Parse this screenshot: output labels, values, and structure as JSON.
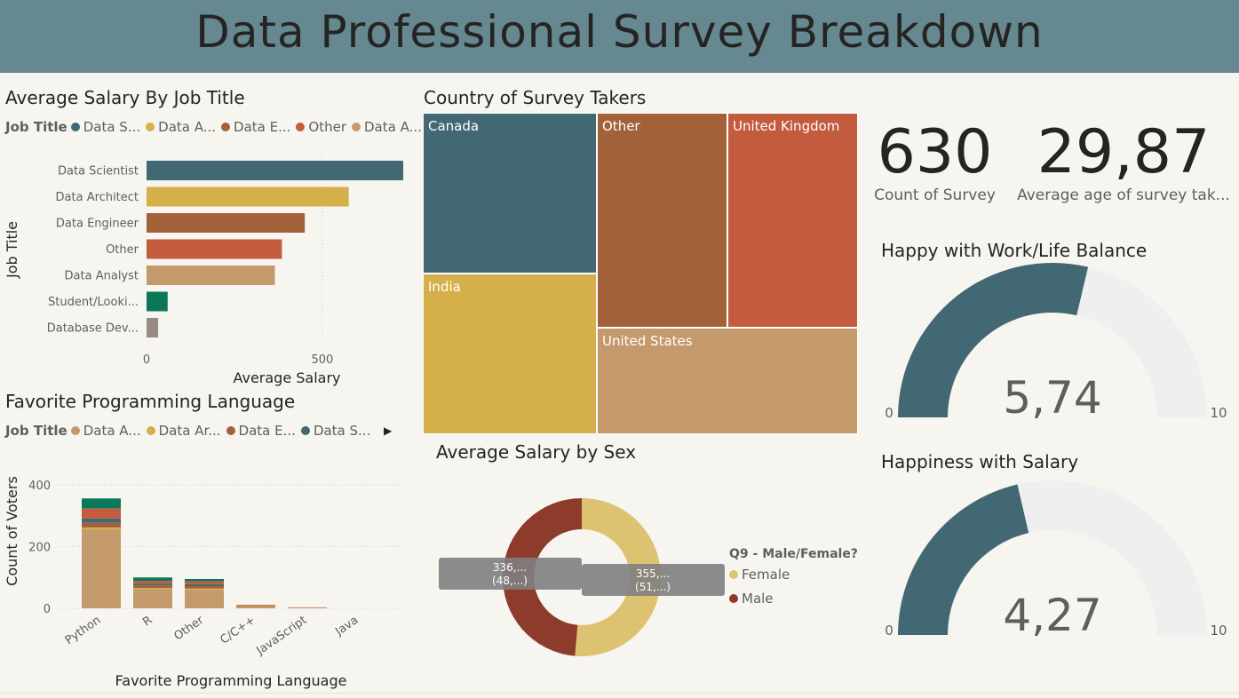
{
  "header": {
    "title": "Data Professional Survey Breakdown"
  },
  "colors": {
    "banner": "#668891",
    "teal": "#426873",
    "gold": "#d5b04a",
    "brown": "#a36139",
    "orange": "#c35c3e",
    "tan": "#c49a6c",
    "green": "#0a7759",
    "gray": "#978b82",
    "female": "#ddc271",
    "male": "#8d3b2b",
    "gauge_track": "#efefef"
  },
  "salary_by_title": {
    "title": "Average Salary By Job Title",
    "legend_title": "Job Title",
    "legend": [
      {
        "label": "Data S...",
        "color": "#426873"
      },
      {
        "label": "Data A...",
        "color": "#d5b04a"
      },
      {
        "label": "Data E...",
        "color": "#a36139"
      },
      {
        "label": "Other",
        "color": "#c35c3e"
      },
      {
        "label": "Data A...",
        "color": "#c49a6c"
      }
    ]
  },
  "languages": {
    "title": "Favorite Programming Language",
    "legend_title": "Job Title",
    "legend": [
      {
        "label": "Data A...",
        "color": "#c49a6c"
      },
      {
        "label": "Data Ar...",
        "color": "#d5b04a"
      },
      {
        "label": "Data E...",
        "color": "#a36139"
      },
      {
        "label": "Data S...",
        "color": "#426873"
      }
    ],
    "more_glyph": "▶"
  },
  "countries": {
    "title": "Country of Survey Takers",
    "tiles": [
      {
        "label": "Canada",
        "color": "#426873"
      },
      {
        "label": "India",
        "color": "#d5b04a"
      },
      {
        "label": "Other",
        "color": "#a36139"
      },
      {
        "label": "United Kingdom",
        "color": "#c35c3e"
      },
      {
        "label": "United States",
        "color": "#c49a6c"
      }
    ]
  },
  "sex": {
    "title": "Average Salary by Sex",
    "legend_title": "Q9 - Male/Female?",
    "legend": [
      {
        "label": "Female",
        "color": "#ddc271"
      },
      {
        "label": "Male",
        "color": "#8d3b2b"
      }
    ],
    "labels": [
      {
        "line1": "336,...",
        "line2": "(48,...)"
      },
      {
        "line1": "355,...",
        "line2": "(51,...)"
      }
    ]
  },
  "cards": [
    {
      "value": "630",
      "label": "Count of Survey"
    },
    {
      "value": "29,87",
      "label": "Average age of survey tak..."
    }
  ],
  "gauges": [
    {
      "title": "Happy with Work/Life Balance",
      "value_text": "5,74",
      "value": 5.74,
      "min": 0,
      "max": 10,
      "min_label": "0",
      "max_label": "10"
    },
    {
      "title": "Happiness with Salary",
      "value_text": "4,27",
      "value": 4.27,
      "min": 0,
      "max": 10,
      "min_label": "0",
      "max_label": "10"
    }
  ],
  "chart_data": [
    {
      "type": "bar",
      "orientation": "horizontal",
      "title": "Average Salary By Job Title",
      "categories": [
        "Data Scientist",
        "Data Architect",
        "Data Engineer",
        "Other",
        "Data Analyst",
        "Student/Looki...",
        "Database Dev..."
      ],
      "values": [
        730,
        575,
        450,
        385,
        365,
        60,
        33
      ],
      "colors": [
        "#426873",
        "#d5b04a",
        "#a36139",
        "#c35c3e",
        "#c49a6c",
        "#0a7759",
        "#978b82"
      ],
      "xlabel": "Average Salary",
      "ylabel": "Job Title",
      "xlim": [
        0,
        730
      ],
      "xticks": [
        0,
        500
      ]
    },
    {
      "type": "bar",
      "stacked": true,
      "title": "Favorite Programming Language",
      "categories": [
        "Python",
        "R",
        "Other",
        "C/C++",
        "JavaScript",
        "Java"
      ],
      "series": [
        {
          "name": "Data A...",
          "color": "#c49a6c",
          "values": [
            256,
            62,
            60,
            6,
            1,
            0
          ]
        },
        {
          "name": "Data Ar...",
          "color": "#d5b04a",
          "values": [
            6,
            4,
            4,
            1,
            0,
            0
          ]
        },
        {
          "name": "Data E...",
          "color": "#a36139",
          "values": [
            15,
            8,
            8,
            2,
            1,
            0
          ]
        },
        {
          "name": "Data S...",
          "color": "#426873",
          "values": [
            14,
            6,
            6,
            0,
            0,
            0
          ]
        },
        {
          "color": "#c35c3e",
          "values": [
            33,
            9,
            10,
            2,
            1,
            0
          ]
        },
        {
          "color": "#0a7759",
          "values": [
            32,
            11,
            7,
            0,
            0,
            0
          ]
        }
      ],
      "xlabel": "Favorite Programming Language",
      "ylabel": "Count of Voters",
      "ylim": [
        0,
        450
      ],
      "yticks": [
        0,
        200,
        400
      ]
    },
    {
      "type": "treemap",
      "title": "Country of Survey Takers",
      "categories": [
        "Canada",
        "India",
        "Other",
        "United Kingdom",
        "United States"
      ],
      "values": [
        95,
        85,
        115,
        100,
        85
      ]
    },
    {
      "type": "pie",
      "donut": true,
      "title": "Average Salary by Sex",
      "categories": [
        "Female",
        "Male"
      ],
      "values": [
        355,
        336
      ],
      "labels": [
        "355,... (51,...)",
        "336,... (48,...)"
      ],
      "colors": [
        "#ddc271",
        "#8d3b2b"
      ]
    }
  ]
}
